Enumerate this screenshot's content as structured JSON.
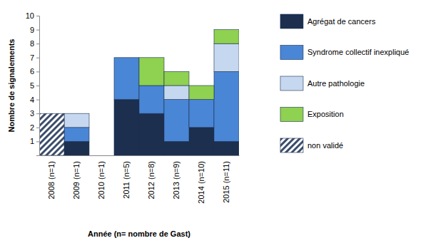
{
  "chart_data": {
    "type": "bar",
    "stacked": true,
    "x_label": "Année (n= nombre de Gast)",
    "y_label": "Nombre de signalements",
    "categories": [
      "2008 (n=1)",
      "2009 (n=1)",
      "2010 (n=1)",
      "2011 (n=5)",
      "2012 (n=8)",
      "2013 (n=9)",
      "2014 (n=10)",
      "2015 (n=11)"
    ],
    "series": [
      {
        "name": "Agrégat de cancers",
        "color": "#1c2f4f",
        "values": [
          0,
          1,
          0,
          4,
          3,
          1,
          2,
          1
        ]
      },
      {
        "name": "Syndrome collectif inexpliqué",
        "color": "#4a86d6",
        "values": [
          0,
          1,
          0,
          3,
          2,
          3,
          2,
          5
        ]
      },
      {
        "name": "Autre pathologie",
        "color": "#c6d8f0",
        "values": [
          0,
          1,
          0,
          0,
          0,
          1,
          0,
          2
        ]
      },
      {
        "name": "Exposition",
        "color": "#8fd150",
        "values": [
          0,
          0,
          0,
          0,
          2,
          1,
          1,
          1
        ]
      },
      {
        "name": "non validé",
        "color": "#3b4d6b",
        "values": [
          3,
          0,
          0,
          0,
          0,
          0,
          0,
          0
        ]
      }
    ],
    "ylim": [
      0,
      10
    ],
    "yticks": [
      1,
      2,
      3,
      4,
      5,
      6,
      7,
      8,
      9,
      10
    ],
    "legend": "right"
  }
}
